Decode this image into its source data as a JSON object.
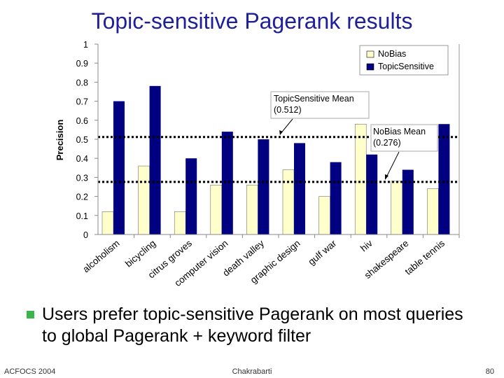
{
  "slide": {
    "title": "Topic-sensitive Pagerank results",
    "bullet": "Users prefer topic-sensitive Pagerank on most queries to global Pagerank + keyword filter",
    "footer_left": "ACFOCS 2004",
    "footer_center": "Chakrabarti",
    "footer_right": "80"
  },
  "chart_data": {
    "type": "bar",
    "title": "",
    "xlabel": "",
    "ylabel": "Precision",
    "ylim": [
      0,
      1
    ],
    "yticks": [
      "0",
      "0.1",
      "0.2",
      "0.3",
      "0.4",
      "0.5",
      "0.6",
      "0.7",
      "0.8",
      "0.9",
      "1"
    ],
    "categories": [
      "alcoholism",
      "bicycling",
      "citrus groves",
      "computer vision",
      "death valley",
      "graphic design",
      "gulf war",
      "hiv",
      "shakespeare",
      "table tennis"
    ],
    "series": [
      {
        "name": "NoBias",
        "color": "#ffffcc",
        "values": [
          0.12,
          0.36,
          0.12,
          0.26,
          0.26,
          0.34,
          0.2,
          0.58,
          0.28,
          0.24
        ]
      },
      {
        "name": "TopicSensitive",
        "color": "#000080",
        "values": [
          0.7,
          0.78,
          0.4,
          0.54,
          0.5,
          0.48,
          0.38,
          0.42,
          0.34,
          0.58
        ]
      }
    ],
    "reference_lines": [
      {
        "name": "TopicSensitive Mean",
        "label": "TopicSensitive Mean",
        "value_label": "(0.512)",
        "value": 0.512
      },
      {
        "name": "NoBias Mean",
        "label": "NoBias Mean",
        "value_label": "(0.276)",
        "value": 0.276
      }
    ],
    "grid": false,
    "legend_position": "top-right"
  }
}
